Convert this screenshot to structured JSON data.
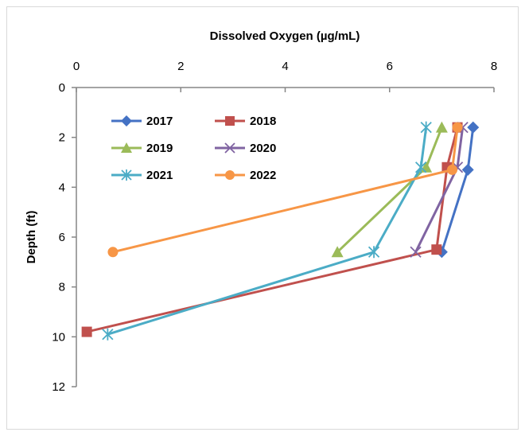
{
  "chart_data": {
    "type": "line",
    "title": "",
    "xlabel": "Dissolved Oxygen (µg/mL)",
    "ylabel": "Depth (ft)",
    "xlim": [
      0,
      8
    ],
    "ylim": [
      0,
      12
    ],
    "y_inverted": true,
    "x_axis_position": "top",
    "x_ticks": [
      "0",
      "2",
      "4",
      "6",
      "8"
    ],
    "y_ticks": [
      "0",
      "2",
      "4",
      "6",
      "8",
      "10",
      "12"
    ],
    "grid": false,
    "legend_position": "upper-left, inside plot, 2 columns",
    "series": [
      {
        "name": "2017",
        "color": "#4472C4",
        "marker": "diamond",
        "x": [
          7.6,
          7.5,
          7.0
        ],
        "y": [
          1.6,
          3.3,
          6.6
        ]
      },
      {
        "name": "2018",
        "color": "#C0504D",
        "marker": "square",
        "x": [
          7.3,
          7.1,
          6.9,
          0.2
        ],
        "y": [
          1.6,
          3.2,
          6.5,
          9.8
        ]
      },
      {
        "name": "2019",
        "color": "#9BBB59",
        "marker": "triangle",
        "x": [
          7.0,
          6.7,
          5.0
        ],
        "y": [
          1.6,
          3.2,
          6.6
        ]
      },
      {
        "name": "2020",
        "color": "#8064A2",
        "marker": "x",
        "x": [
          7.4,
          7.3,
          6.5
        ],
        "y": [
          1.6,
          3.2,
          6.6
        ]
      },
      {
        "name": "2021",
        "color": "#4BACC6",
        "marker": "star",
        "x": [
          6.7,
          6.6,
          5.7,
          0.6
        ],
        "y": [
          1.6,
          3.2,
          6.6,
          9.9
        ]
      },
      {
        "name": "2022",
        "color": "#F79646",
        "marker": "circle",
        "x": [
          7.3,
          7.2,
          0.7
        ],
        "y": [
          1.6,
          3.3,
          6.6
        ]
      }
    ]
  }
}
